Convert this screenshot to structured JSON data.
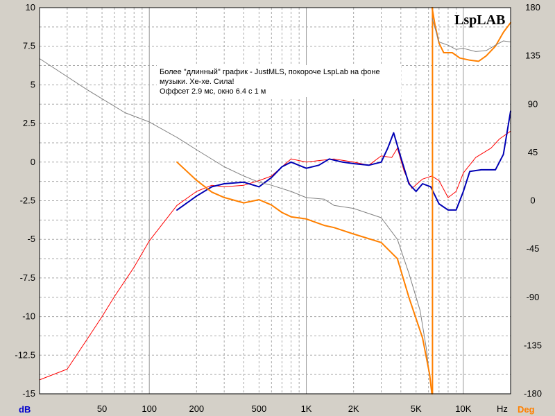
{
  "chart_data": {
    "type": "line",
    "brand": "LspLAB",
    "annotation": [
      "Более \"длинный\" график - JustMLS, покороче LspLab на фоне",
      "музыки. Хе-хе. Сила!",
      "Оффсет 2.9 мс, окно 6.4 с 1 м"
    ],
    "x_axis": {
      "scale": "log",
      "range": [
        20,
        20000
      ],
      "unit_label": "Hz",
      "ticks": [
        {
          "value": 50,
          "label": "50"
        },
        {
          "value": 100,
          "label": "100"
        },
        {
          "value": 200,
          "label": "200"
        },
        {
          "value": 500,
          "label": "500"
        },
        {
          "value": 1000,
          "label": "1K"
        },
        {
          "value": 2000,
          "label": "2K"
        },
        {
          "value": 5000,
          "label": "5K"
        },
        {
          "value": 10000,
          "label": "10K"
        }
      ]
    },
    "y_left": {
      "unit_label": "dB",
      "unit_color": "#0000cc",
      "range": [
        -15,
        10
      ],
      "ticks": [
        {
          "value": 10,
          "label": "10"
        },
        {
          "value": 7.5,
          "label": "7.5"
        },
        {
          "value": 5,
          "label": "5"
        },
        {
          "value": 2.5,
          "label": "2.5"
        },
        {
          "value": 0,
          "label": "0"
        },
        {
          "value": -2.5,
          "label": "-2.5"
        },
        {
          "value": -5,
          "label": "-5"
        },
        {
          "value": -7.5,
          "label": "-7.5"
        },
        {
          "value": -10,
          "label": "-10"
        },
        {
          "value": -12.5,
          "label": "-12.5"
        },
        {
          "value": -15,
          "label": "-15"
        }
      ]
    },
    "y_right": {
      "unit_label": "Deg",
      "unit_color": "#ff8000",
      "range": [
        -180,
        180
      ],
      "ticks": [
        {
          "value": 180,
          "label": "180"
        },
        {
          "value": 135,
          "label": "135"
        },
        {
          "value": 90,
          "label": "90"
        },
        {
          "value": 45,
          "label": "45"
        },
        {
          "value": 0,
          "label": "0"
        },
        {
          "value": -45,
          "label": "-45"
        },
        {
          "value": -90,
          "label": "-90"
        },
        {
          "value": -135,
          "label": "-135"
        },
        {
          "value": -180,
          "label": "-180"
        }
      ]
    },
    "grid": true,
    "series": [
      {
        "axis": "left",
        "color": "#ff0000",
        "width": 1,
        "points": [
          [
            20,
            -14.1
          ],
          [
            30,
            -13.4
          ],
          [
            40,
            -11.5
          ],
          [
            50,
            -10.0
          ],
          [
            60,
            -8.7
          ],
          [
            80,
            -6.8
          ],
          [
            100,
            -5.1
          ],
          [
            150,
            -2.8
          ],
          [
            200,
            -1.9
          ],
          [
            250,
            -1.5
          ],
          [
            300,
            -1.6
          ],
          [
            400,
            -1.5
          ],
          [
            500,
            -1.2
          ],
          [
            600,
            -0.9
          ],
          [
            700,
            -0.3
          ],
          [
            800,
            0.2
          ],
          [
            1000,
            0.0
          ],
          [
            1200,
            0.1
          ],
          [
            1500,
            0.2
          ],
          [
            2000,
            0.0
          ],
          [
            2500,
            -0.2
          ],
          [
            3000,
            0.4
          ],
          [
            3500,
            0.3
          ],
          [
            3800,
            0.9
          ],
          [
            4200,
            -0.6
          ],
          [
            4700,
            -1.7
          ],
          [
            5500,
            -1.1
          ],
          [
            6300,
            -0.9
          ],
          [
            7000,
            -1.2
          ],
          [
            8000,
            -2.3
          ],
          [
            9000,
            -1.9
          ],
          [
            10000,
            -0.7
          ],
          [
            12000,
            0.3
          ],
          [
            15000,
            0.9
          ],
          [
            17000,
            1.5
          ],
          [
            20000,
            2.0
          ]
        ]
      },
      {
        "axis": "left",
        "color": "#0000b4",
        "width": 2,
        "points": [
          [
            150,
            -3.1
          ],
          [
            200,
            -2.2
          ],
          [
            250,
            -1.6
          ],
          [
            300,
            -1.4
          ],
          [
            400,
            -1.3
          ],
          [
            500,
            -1.6
          ],
          [
            600,
            -1.0
          ],
          [
            700,
            -0.3
          ],
          [
            800,
            0.0
          ],
          [
            1000,
            -0.4
          ],
          [
            1200,
            -0.2
          ],
          [
            1400,
            0.2
          ],
          [
            1700,
            0.0
          ],
          [
            2000,
            -0.1
          ],
          [
            2500,
            -0.2
          ],
          [
            3000,
            0.0
          ],
          [
            3300,
            0.9
          ],
          [
            3600,
            1.9
          ],
          [
            4000,
            0.3
          ],
          [
            4500,
            -1.4
          ],
          [
            5000,
            -1.9
          ],
          [
            5500,
            -1.4
          ],
          [
            6200,
            -1.6
          ],
          [
            7000,
            -2.7
          ],
          [
            8000,
            -3.1
          ],
          [
            9000,
            -3.1
          ],
          [
            10000,
            -1.9
          ],
          [
            11000,
            -0.6
          ],
          [
            13000,
            -0.5
          ],
          [
            16000,
            -0.5
          ],
          [
            18000,
            0.5
          ],
          [
            20000,
            3.3
          ]
        ]
      },
      {
        "axis": "left",
        "color": "#808080",
        "width": 1,
        "points": [
          [
            20,
            6.7
          ],
          [
            40,
            4.7
          ],
          [
            70,
            3.2
          ],
          [
            100,
            2.6
          ],
          [
            150,
            1.6
          ],
          [
            200,
            0.8
          ],
          [
            300,
            -0.3
          ],
          [
            400,
            -0.9
          ],
          [
            500,
            -1.3
          ],
          [
            600,
            -1.5
          ],
          [
            800,
            -1.9
          ],
          [
            1000,
            -2.3
          ],
          [
            1300,
            -2.4
          ],
          [
            1500,
            -2.8
          ],
          [
            2000,
            -3.0
          ],
          [
            3000,
            -3.6
          ],
          [
            3800,
            -5.0
          ],
          [
            4500,
            -7.2
          ],
          [
            5300,
            -9.6
          ],
          [
            5800,
            -12.0
          ],
          [
            6200,
            -14.5
          ]
        ]
      },
      {
        "axis": "right",
        "color": "#ff8000",
        "width": 2,
        "points": [
          [
            150,
            36
          ],
          [
            200,
            19
          ],
          [
            250,
            8
          ],
          [
            300,
            3
          ],
          [
            400,
            -2
          ],
          [
            500,
            1
          ],
          [
            600,
            -4
          ],
          [
            700,
            -11
          ],
          [
            800,
            -15
          ],
          [
            1000,
            -17
          ],
          [
            1300,
            -23
          ],
          [
            1500,
            -25
          ],
          [
            2000,
            -31
          ],
          [
            3000,
            -39
          ],
          [
            3800,
            -54
          ],
          [
            4500,
            -90
          ],
          [
            5500,
            -128
          ],
          [
            6100,
            -162
          ],
          [
            6300,
            -180
          ]
        ]
      },
      {
        "axis": "right",
        "color": "#ff8000",
        "width": 2,
        "points": [
          [
            6320,
            180
          ],
          [
            6600,
            164
          ],
          [
            7000,
            147
          ],
          [
            7500,
            138
          ],
          [
            8500,
            138
          ],
          [
            9500,
            133
          ],
          [
            11000,
            131
          ],
          [
            12500,
            130
          ],
          [
            14000,
            135
          ],
          [
            16000,
            144
          ],
          [
            18000,
            157
          ],
          [
            20000,
            166
          ]
        ]
      },
      {
        "axis": "right",
        "color": "#ff8000",
        "width": 2,
        "points": [
          [
            6360,
            180
          ],
          [
            6360,
            -180
          ]
        ]
      },
      {
        "axis": "right",
        "color": "#808080",
        "width": 1,
        "points": [
          [
            6330,
            170
          ],
          [
            7000,
            148
          ],
          [
            8000,
            145
          ],
          [
            9000,
            141
          ],
          [
            10000,
            142
          ],
          [
            12000,
            139
          ],
          [
            14000,
            140
          ],
          [
            16000,
            145
          ],
          [
            18000,
            149
          ],
          [
            20000,
            148
          ]
        ]
      }
    ]
  }
}
